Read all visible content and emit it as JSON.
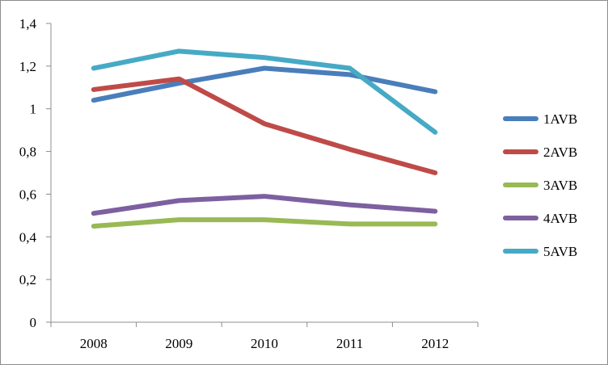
{
  "chart_data": {
    "type": "line",
    "title": "",
    "xlabel": "",
    "ylabel": "",
    "categories": [
      "2008",
      "2009",
      "2010",
      "2011",
      "2012"
    ],
    "ylim": [
      0,
      1.4
    ],
    "y_ticks": [
      0,
      0.2,
      0.4,
      0.6,
      0.8,
      1,
      1.2,
      1.4
    ],
    "y_tick_labels": [
      "0",
      "0,2",
      "0,4",
      "0,6",
      "0,8",
      "1",
      "1,2",
      "1,4"
    ],
    "grid": false,
    "legend_position": "right",
    "series": [
      {
        "name": "1AVB",
        "color": "#4a7ebb",
        "values": [
          1.04,
          1.12,
          1.19,
          1.16,
          1.08
        ]
      },
      {
        "name": "2AVB",
        "color": "#be4b48",
        "values": [
          1.09,
          1.14,
          0.93,
          0.81,
          0.7
        ]
      },
      {
        "name": "3AVB",
        "color": "#98b954",
        "values": [
          0.45,
          0.48,
          0.48,
          0.46,
          0.46
        ]
      },
      {
        "name": "4AVB",
        "color": "#7d60a0",
        "values": [
          0.51,
          0.57,
          0.59,
          0.55,
          0.52
        ]
      },
      {
        "name": "5AVB",
        "color": "#46aac5",
        "values": [
          1.19,
          1.27,
          1.24,
          1.19,
          0.89
        ]
      }
    ]
  }
}
